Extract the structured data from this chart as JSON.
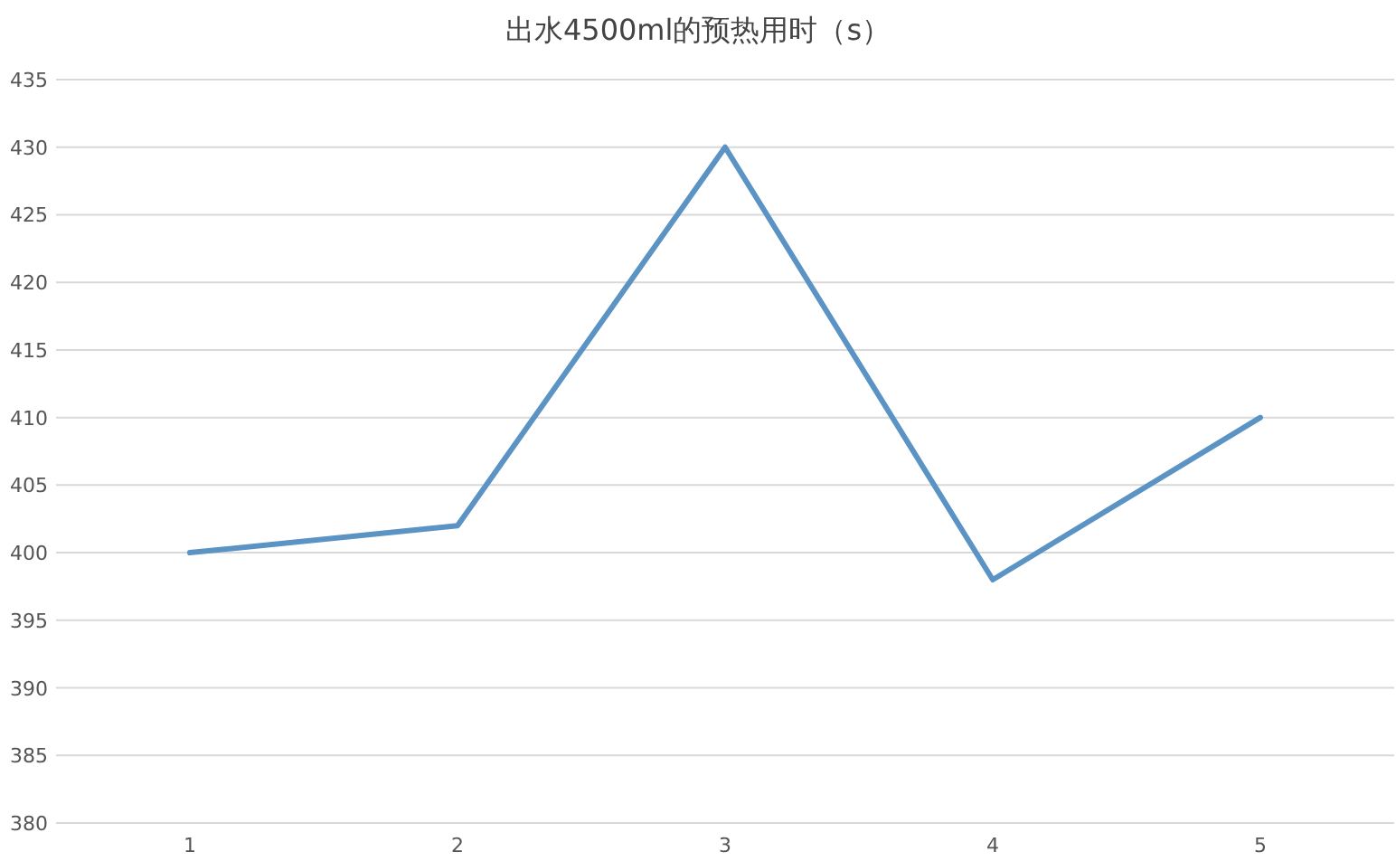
{
  "chart_data": {
    "type": "line",
    "title": "出水4500ml的预热用时（s）",
    "categories": [
      "1",
      "2",
      "3",
      "4",
      "5"
    ],
    "series": [
      {
        "color": "#5b93c4",
        "values": [
          400,
          402,
          430,
          398,
          410
        ]
      }
    ],
    "ylim": [
      380,
      435
    ],
    "yticks": [
      380,
      385,
      390,
      395,
      400,
      405,
      410,
      415,
      420,
      425,
      430,
      435
    ],
    "grid": "y",
    "marker": "none",
    "line_style": "solid"
  }
}
